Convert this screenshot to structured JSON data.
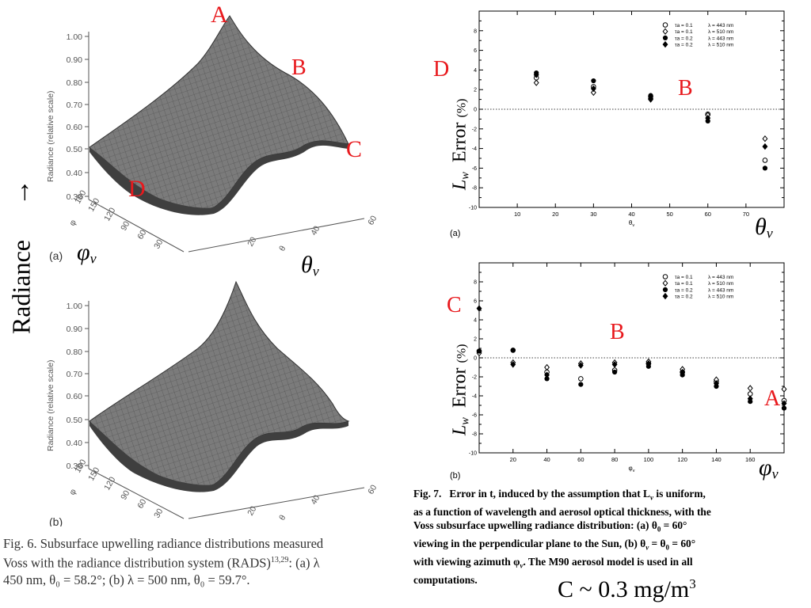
{
  "fig6": {
    "ylabel": "Radiance (relative scale)",
    "yticks": [
      "1.00",
      "0.90",
      "0.80",
      "0.70",
      "0.60",
      "0.50",
      "0.40",
      "0.30"
    ],
    "phi_ticks": [
      "180",
      "150",
      "120",
      "90",
      "60",
      "30"
    ],
    "theta_ticks": [
      "20",
      "40",
      "60"
    ],
    "phi_axis_sym": "φ",
    "theta_axis_sym": "θ",
    "panel_a": "(a)",
    "panel_b": "(b)",
    "caption_line1": "Fig. 6.   Subsurface upwelling radiance distributions measured",
    "caption_line2": "Voss with the radiance distribution system (RADS)",
    "caption_refs": "13,29",
    "caption_line2b": ":   (a) λ",
    "caption_line3": "450 nm, θ₀ = 58.2°; (b) λ = 500 nm, θ₀ = 59.7°."
  },
  "annotations": {
    "A_top": "A",
    "B_top": "B",
    "C_top": "C",
    "D_top": "D",
    "radiance_arrow": "→",
    "radiance_text": "Radiance",
    "phi_v_left": "φ",
    "theta_v_left": "θ",
    "D_right": "D",
    "B_right_a": "B",
    "theta_v_right": "θ",
    "C_right": "C",
    "B_right_b": "B",
    "A_right": "A",
    "phi_v_right": "φ",
    "sub_v": "v",
    "concentration": "C ~ 0.3 mg/m",
    "concentration_sup": "3"
  },
  "fig7": {
    "ylabel_L": "L",
    "ylabel_sub": "w",
    "ylabel_error": "Error",
    "ylabel_pct": "(%)",
    "panel_a": "(a)",
    "panel_b": "(b)",
    "xlabel_a": "θ",
    "xlabel_b": "φ",
    "xlabel_sub": "v",
    "legend": [
      {
        "symbol": "open-circle",
        "tau": "τa = 0.1",
        "lambda": "λ = 443 nm"
      },
      {
        "symbol": "open-diamond",
        "tau": "τa = 0.1",
        "lambda": "λ = 510 nm"
      },
      {
        "symbol": "filled-circle",
        "tau": "τa = 0.2",
        "lambda": "λ = 443 nm"
      },
      {
        "symbol": "filled-diamond",
        "tau": "τa = 0.2",
        "lambda": "λ = 510 nm"
      }
    ],
    "caption_label": "Fig. 7.",
    "caption_lines": [
      "Error in t, induced by the assumption that L",
      " is uniform,",
      "as a function of wavelength and aerosol optical thickness, with the",
      "Voss subsurface upwelling radiance distribution:  (a) θ",
      " = 60°",
      "viewing in the perpendicular plane to the Sun, (b) θ",
      " = θ",
      " = 60°",
      "with viewing azimuth φ",
      ".   The M90 aerosol model is used in all",
      "computations."
    ]
  },
  "chart_data": [
    {
      "type": "scatter",
      "panel": "(a)",
      "xlabel": "θv",
      "ylabel": "Lw Error (%)",
      "xlim": [
        0,
        80
      ],
      "ylim": [
        -10,
        10
      ],
      "xticks": [
        10,
        20,
        30,
        40,
        50,
        60,
        70
      ],
      "yticks": [
        -10,
        -8,
        -6,
        -4,
        -2,
        0,
        2,
        4,
        6,
        8
      ],
      "series": [
        {
          "name": "τa = 0.1 λ = 443 nm",
          "marker": "open-circle",
          "x": [
            15,
            30,
            45,
            60,
            75
          ],
          "y": [
            3.2,
            2.3,
            1.3,
            -0.5,
            -5.2
          ]
        },
        {
          "name": "τa = 0.1 λ = 510 nm",
          "marker": "open-diamond",
          "x": [
            15,
            30,
            45,
            60,
            75
          ],
          "y": [
            2.7,
            1.7,
            1.0,
            -0.6,
            -3.0
          ]
        },
        {
          "name": "τa = 0.2 λ = 443 nm",
          "marker": "filled-circle",
          "x": [
            15,
            30,
            45,
            60,
            75
          ],
          "y": [
            3.7,
            2.9,
            1.4,
            -1.2,
            -6.0
          ]
        },
        {
          "name": "τa = 0.2 λ = 510 nm",
          "marker": "filled-diamond",
          "x": [
            15,
            30,
            45,
            60,
            75
          ],
          "y": [
            3.5,
            2.1,
            1.1,
            -0.9,
            -3.8
          ]
        }
      ]
    },
    {
      "type": "scatter",
      "panel": "(b)",
      "xlabel": "φv",
      "ylabel": "Lw Error (%)",
      "xlim": [
        0,
        180
      ],
      "ylim": [
        -10,
        10
      ],
      "xticks": [
        20,
        40,
        60,
        80,
        100,
        120,
        140,
        160
      ],
      "yticks": [
        -10,
        -8,
        -6,
        -4,
        -2,
        0,
        2,
        4,
        6,
        8
      ],
      "series": [
        {
          "name": "τa = 0.1 λ = 443 nm",
          "marker": "open-circle",
          "x": [
            0,
            20,
            40,
            60,
            80,
            100,
            120,
            140,
            160,
            180
          ],
          "y": [
            0.7,
            0.8,
            -1.5,
            -2.2,
            -1.3,
            -0.6,
            -1.5,
            -2.5,
            -3.8,
            -4.5
          ]
        },
        {
          "name": "τa = 0.1 λ = 510 nm",
          "marker": "open-diamond",
          "x": [
            0,
            20,
            40,
            60,
            80,
            100,
            120,
            140,
            160,
            180
          ],
          "y": [
            0.5,
            -0.5,
            -1.0,
            -0.6,
            -0.5,
            -0.4,
            -1.2,
            -2.3,
            -3.2,
            -3.3
          ]
        },
        {
          "name": "τa = 0.2 λ = 443 nm",
          "marker": "filled-circle",
          "x": [
            0,
            20,
            40,
            60,
            80,
            100,
            120,
            140,
            160,
            180
          ],
          "y": [
            0.7,
            0.8,
            -2.2,
            -2.8,
            -1.5,
            -0.9,
            -1.8,
            -3.0,
            -4.6,
            -5.3
          ]
        },
        {
          "name": "τa = 0.2 λ = 510 nm",
          "marker": "filled-diamond",
          "x": [
            0,
            20,
            40,
            60,
            80,
            100,
            120,
            140,
            160,
            180
          ],
          "y": [
            5.2,
            -0.7,
            -1.8,
            -0.8,
            -0.7,
            -0.6,
            -1.5,
            -2.7,
            -4.3,
            -4.8
          ]
        }
      ]
    }
  ]
}
